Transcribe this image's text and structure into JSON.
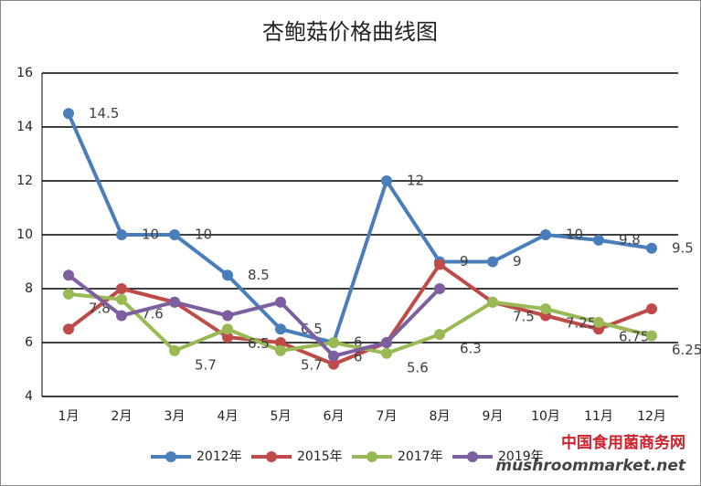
{
  "chart_data": {
    "type": "line",
    "title": "杏鲍菇价格曲线图",
    "categories": [
      "1月",
      "2月",
      "3月",
      "4月",
      "5月",
      "6月",
      "7月",
      "8月",
      "9月",
      "10月",
      "11月",
      "12月"
    ],
    "series": [
      {
        "name": "2012年",
        "color": "#4a7ebb",
        "data_labels": true,
        "values": [
          14.5,
          10,
          10,
          8.5,
          6.5,
          6,
          12,
          9,
          9,
          10,
          9.8,
          9.5
        ]
      },
      {
        "name": "2015年",
        "color": "#be4b48",
        "data_labels": false,
        "values": [
          6.5,
          8,
          7.5,
          6.2,
          6,
          5.2,
          6,
          8.9,
          7.5,
          7,
          6.5,
          7.25
        ]
      },
      {
        "name": "2017年",
        "color": "#98b954",
        "data_labels": true,
        "values": [
          7.8,
          7.6,
          5.7,
          6.5,
          5.7,
          6,
          5.6,
          6.3,
          7.5,
          7.25,
          6.75,
          6.25
        ]
      },
      {
        "name": "2019年",
        "color": "#7d5fa0",
        "data_labels": false,
        "values": [
          8.5,
          7,
          7.5,
          7,
          7.5,
          5.5,
          6,
          8,
          null,
          null,
          null,
          null
        ]
      }
    ],
    "ylim": [
      4,
      16
    ],
    "yticks": [
      4,
      6,
      8,
      10,
      12,
      14,
      16
    ],
    "grid": true,
    "legend": "bottom",
    "watermark": [
      "中国食用菌商务网",
      "mushroommarket.net"
    ]
  }
}
